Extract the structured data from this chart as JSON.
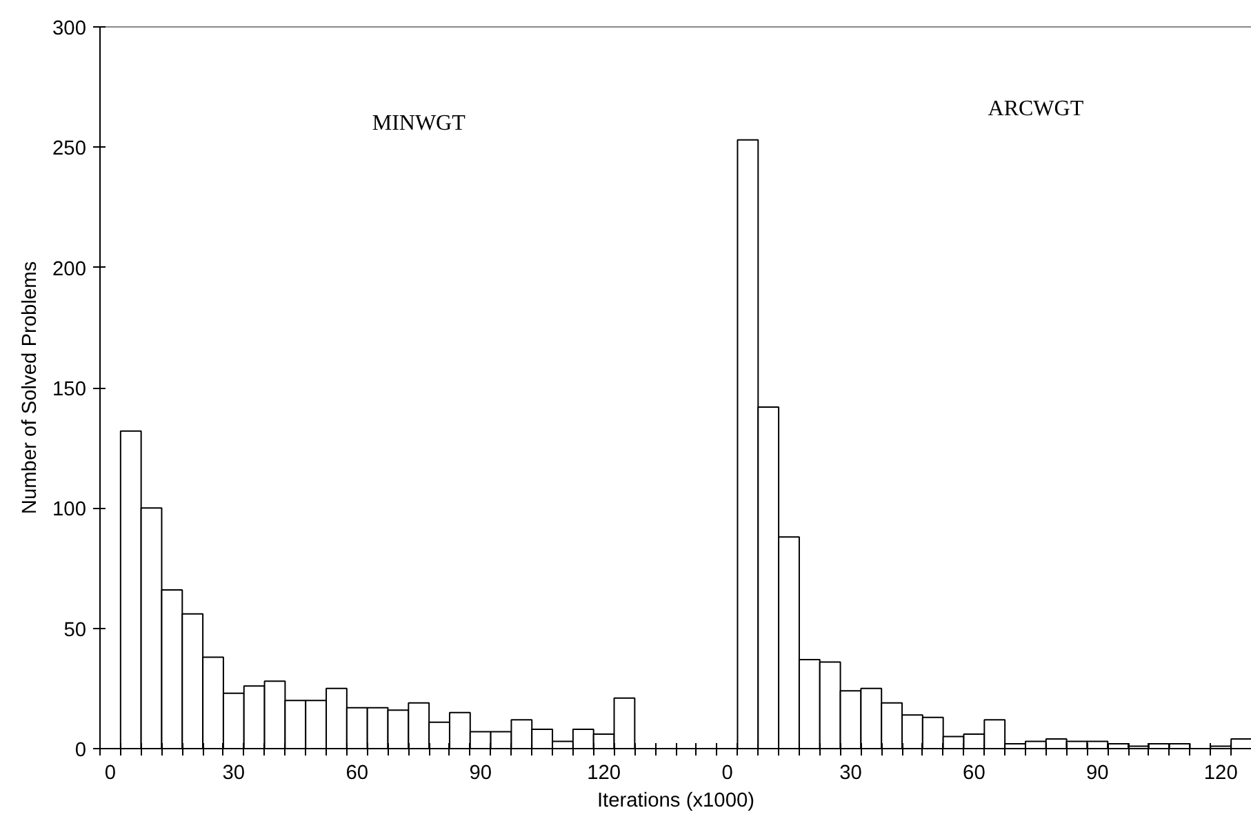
{
  "chart_data": {
    "type": "bar",
    "xlabel": "Iterations (x1000)",
    "ylabel": "Number of Solved Problems",
    "annotations": [
      "MINWGT",
      "ARCWGT"
    ],
    "categories": [
      "0",
      null,
      null,
      null,
      null,
      null,
      "30",
      null,
      null,
      null,
      null,
      null,
      "60",
      null,
      null,
      null,
      null,
      null,
      "90",
      null,
      null,
      null,
      null,
      null,
      "120",
      null,
      null,
      null,
      null,
      null,
      "0",
      null,
      null,
      null,
      null,
      null,
      "30",
      null,
      null,
      null,
      null,
      null,
      "60",
      null,
      null,
      null,
      null,
      null,
      "90",
      null,
      null,
      null,
      null,
      null,
      "120",
      null
    ],
    "series": [
      {
        "color": "#ffffff",
        "values": [
          null,
          132,
          100,
          66,
          56,
          38,
          23,
          26,
          28,
          20,
          20,
          25,
          17,
          17,
          16,
          19,
          11,
          15,
          7,
          7,
          12,
          8,
          3,
          8,
          6,
          21,
          null,
          null,
          null,
          null,
          null,
          null,
          null,
          null,
          null,
          null,
          null,
          null,
          null,
          null,
          null,
          null,
          null,
          null,
          null,
          null,
          null,
          null,
          null,
          null,
          null,
          null,
          null,
          null,
          null,
          null
        ]
      },
      {
        "color": "#ffffff",
        "values": [
          null,
          null,
          null,
          null,
          null,
          null,
          null,
          null,
          null,
          null,
          null,
          null,
          null,
          null,
          null,
          null,
          null,
          null,
          null,
          null,
          null,
          null,
          null,
          null,
          null,
          null,
          null,
          null,
          null,
          null,
          null,
          253,
          142,
          88,
          37,
          36,
          24,
          25,
          19,
          14,
          13,
          5,
          6,
          12,
          2,
          3,
          4,
          3,
          3,
          2,
          1,
          2,
          2,
          null,
          1,
          4
        ]
      }
    ],
    "ylim": [
      0,
      300
    ],
    "yticks": [
      0,
      50,
      100,
      150,
      200,
      250,
      300
    ],
    "grid": false
  }
}
